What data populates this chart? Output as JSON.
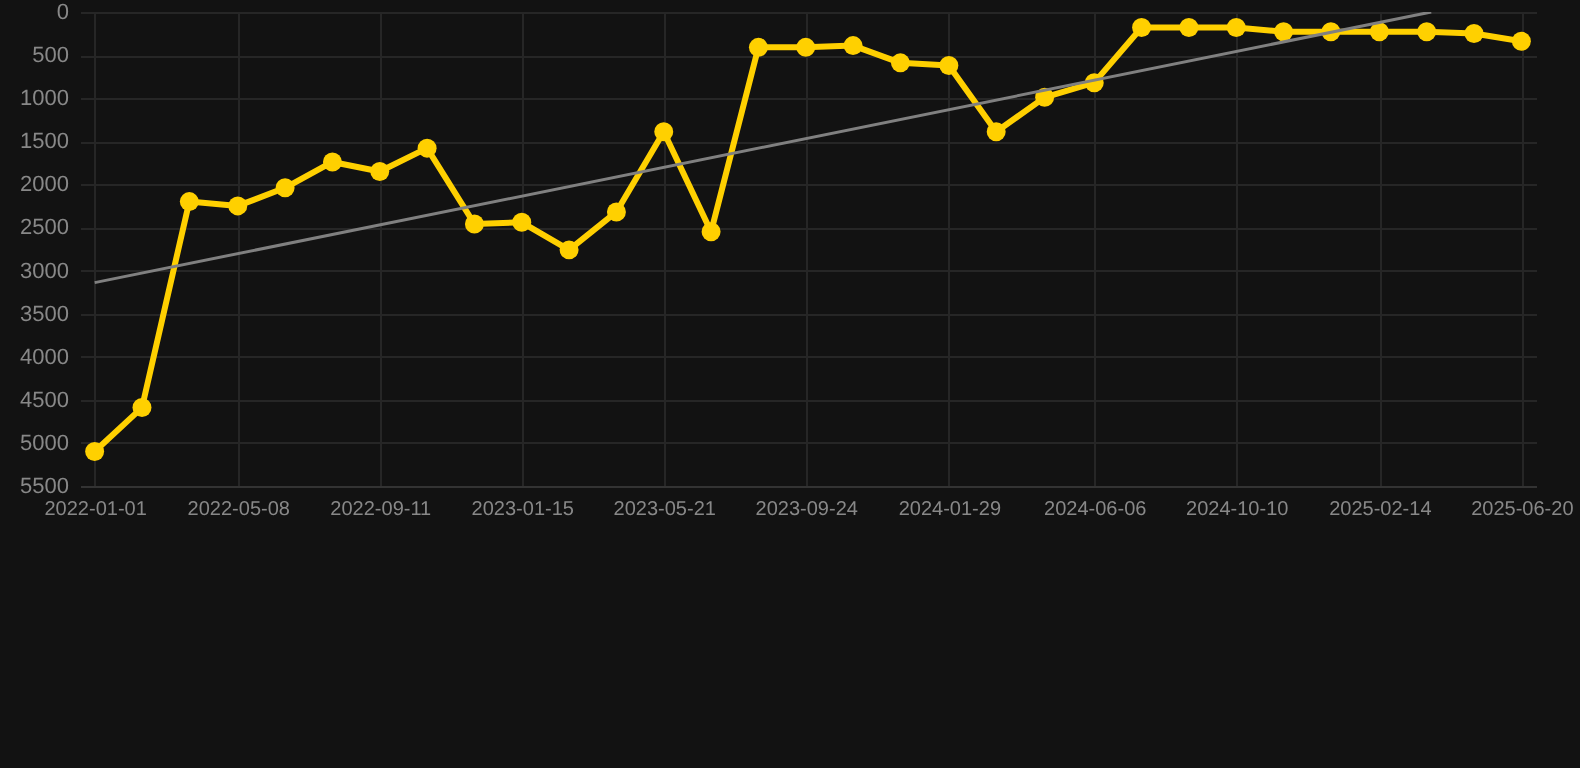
{
  "chart_data": {
    "type": "line",
    "x": [
      "2022-01-01",
      "2022-02-12",
      "2022-03-26",
      "2022-05-08",
      "2022-06-19",
      "2022-07-31",
      "2022-09-11",
      "2022-10-23",
      "2022-12-04",
      "2023-01-15",
      "2023-02-26",
      "2023-04-09",
      "2023-05-21",
      "2023-07-02",
      "2023-08-13",
      "2023-09-24",
      "2023-11-05",
      "2023-12-17",
      "2024-01-29",
      "2024-03-11",
      "2024-04-23",
      "2024-06-06",
      "2024-07-18",
      "2024-08-29",
      "2024-10-10",
      "2024-11-21",
      "2025-01-02",
      "2025-02-14",
      "2025-03-28",
      "2025-05-09",
      "2025-06-20"
    ],
    "series": [
      {
        "color": "#ffd000",
        "marker": "circle",
        "values": [
          5100,
          4590,
          2200,
          2250,
          2040,
          1740,
          1850,
          1580,
          2460,
          2440,
          2760,
          2320,
          1390,
          2550,
          410,
          410,
          390,
          590,
          620,
          1390,
          990,
          820,
          180,
          180,
          180,
          230,
          230,
          230,
          230,
          250,
          340
        ]
      },
      {
        "type": "line",
        "color": "#808080",
        "marker": "none",
        "x": [
          "2022-01-01",
          "2025-04-01"
        ],
        "values": [
          3140,
          0
        ]
      }
    ],
    "xlim": [
      "2021-12-19",
      "2025-07-03"
    ],
    "xticks": [
      "2022-01-01",
      "2022-05-08",
      "2022-09-11",
      "2023-01-15",
      "2023-05-21",
      "2023-09-24",
      "2024-01-29",
      "2024-06-06",
      "2024-10-10",
      "2025-02-14",
      "2025-06-20"
    ],
    "ylim": [
      5500,
      0
    ],
    "yticks": [
      0,
      500,
      1000,
      1500,
      2000,
      2500,
      3000,
      3500,
      4000,
      4500,
      5000,
      5500
    ],
    "grid": true
  }
}
